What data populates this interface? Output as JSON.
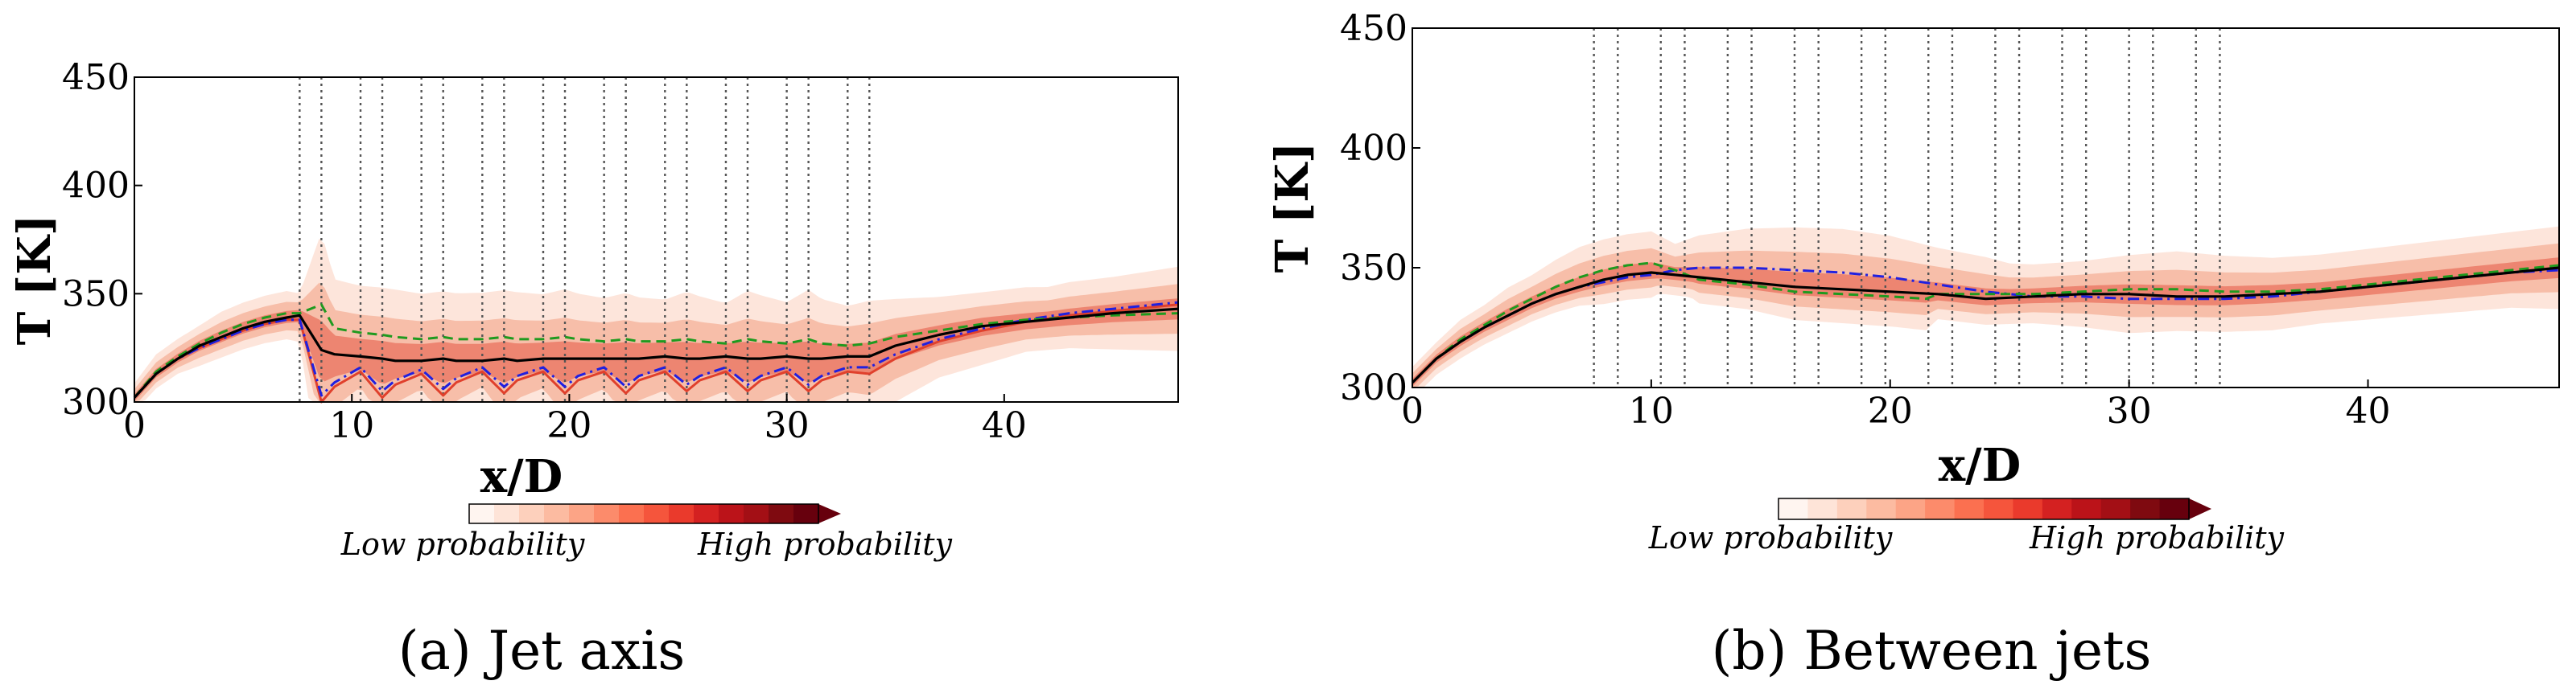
{
  "colors": {
    "band_light": "#fde1d5",
    "band_mid": "#f4a487",
    "band_dark": "#e0402c",
    "line_mean": "#000000",
    "line_green": "#1f9a1f",
    "line_blue": "#2020e0",
    "frame": "#000000",
    "injector": "#555555"
  },
  "colorbar": {
    "low_label": "Low probability",
    "high_label": "High probability",
    "colors": [
      "#fff5f0",
      "#fee4d8",
      "#fdd0bc",
      "#fcbba1",
      "#fca486",
      "#fc8b6b",
      "#fb7050",
      "#f5553c",
      "#ea3a2c",
      "#d42121",
      "#bb1319",
      "#a30f15",
      "#7f0a10",
      "#67000d"
    ]
  },
  "chart_data": [
    {
      "id": "a",
      "type": "line",
      "caption_letter": "(a)",
      "caption_text": "Jet axis",
      "xlabel": "x/D",
      "ylabel": "T [K]",
      "xlim": [
        0,
        48
      ],
      "ylim": [
        300,
        450
      ],
      "xticks": [
        0,
        10,
        20,
        30,
        40
      ],
      "yticks": [
        300,
        350,
        400,
        450
      ],
      "injector_lines": [
        7.6,
        8.6,
        10.4,
        11.4,
        13.2,
        14.2,
        16.0,
        17.0,
        18.8,
        19.8,
        21.6,
        22.6,
        24.4,
        25.4,
        27.2,
        28.2,
        30.0,
        31.0,
        32.8,
        33.8
      ],
      "series": [
        {
          "name": "mean",
          "style": "solid",
          "x": [
            0,
            1,
            2,
            3,
            4,
            5,
            6,
            7,
            7.6,
            8.6,
            9.2,
            10.4,
            11.4,
            12.0,
            13.2,
            14.2,
            14.8,
            16.0,
            17.0,
            17.6,
            18.8,
            19.8,
            20.4,
            21.6,
            22.6,
            23.2,
            24.4,
            25.4,
            26.0,
            27.2,
            28.2,
            28.8,
            30.0,
            31.0,
            31.6,
            32.8,
            33.8,
            35,
            37,
            39,
            41,
            43,
            45,
            48
          ],
          "y": [
            302,
            313,
            320,
            326,
            330,
            334,
            337,
            339,
            340,
            324,
            322,
            321,
            320,
            319,
            319,
            320,
            319,
            319,
            320,
            319,
            320,
            320,
            320,
            320,
            320,
            320,
            321,
            320,
            320,
            321,
            320,
            320,
            321,
            320,
            320,
            321,
            321,
            326,
            331,
            335,
            337,
            339,
            341,
            343
          ]
        },
        {
          "name": "green",
          "style": "dashed",
          "x": [
            0,
            1,
            2,
            3,
            4,
            5,
            6,
            7,
            7.6,
            8.6,
            9.2,
            10.4,
            11.4,
            12.0,
            13.2,
            14.2,
            14.8,
            16.0,
            17.0,
            17.6,
            18.8,
            19.8,
            20.4,
            21.6,
            22.6,
            23.2,
            24.4,
            25.4,
            26.0,
            27.2,
            28.2,
            28.8,
            30.0,
            31.0,
            31.6,
            32.8,
            33.8,
            35,
            37,
            39,
            41,
            43,
            45,
            48
          ],
          "y": [
            302,
            314,
            321,
            327,
            332,
            336,
            339,
            341,
            341,
            345,
            334,
            332,
            331,
            330,
            329,
            330,
            329,
            329,
            330,
            329,
            329,
            330,
            329,
            328,
            329,
            328,
            328,
            329,
            328,
            327,
            329,
            328,
            327,
            329,
            327,
            326,
            327,
            330,
            333,
            336,
            338,
            339,
            340,
            341
          ]
        },
        {
          "name": "blue",
          "style": "dashdot",
          "x": [
            0,
            1,
            2,
            3,
            4,
            5,
            6,
            7,
            7.6,
            8.6,
            9.2,
            10.4,
            11.4,
            12.0,
            13.2,
            14.2,
            14.8,
            16.0,
            17.0,
            17.6,
            18.8,
            19.8,
            20.4,
            21.6,
            22.6,
            23.2,
            24.4,
            25.4,
            26.0,
            27.2,
            28.2,
            28.8,
            30.0,
            31.0,
            31.6,
            32.8,
            33.8,
            35,
            37,
            39,
            41,
            43,
            45,
            48
          ],
          "y": [
            302,
            313,
            320,
            325,
            329,
            333,
            336,
            338,
            338,
            303,
            309,
            316,
            305,
            310,
            315,
            306,
            311,
            316,
            307,
            312,
            316,
            307,
            312,
            316,
            307,
            312,
            316,
            308,
            312,
            316,
            308,
            312,
            316,
            308,
            312,
            316,
            316,
            322,
            329,
            334,
            338,
            341,
            343,
            346
          ]
        },
        {
          "name": "red",
          "style": "solid",
          "x": [
            0,
            1,
            2,
            3,
            4,
            5,
            6,
            7,
            7.6,
            8.6,
            9.2,
            10.4,
            11.4,
            12.0,
            13.2,
            14.2,
            14.8,
            16.0,
            17.0,
            17.6,
            18.8,
            19.8,
            20.4,
            21.6,
            22.6,
            23.2,
            24.4,
            25.4,
            26.0,
            27.2,
            28.2,
            28.8,
            30.0,
            31.0,
            31.6,
            32.8,
            33.8,
            35,
            37,
            39,
            41,
            43,
            45,
            48
          ],
          "y": [
            302,
            313,
            320,
            325,
            329,
            333,
            336,
            338,
            338,
            300,
            307,
            314,
            302,
            308,
            313,
            303,
            309,
            314,
            304,
            310,
            314,
            304,
            310,
            314,
            304,
            310,
            314,
            305,
            310,
            314,
            305,
            310,
            314,
            305,
            310,
            314,
            313,
            320,
            328,
            333,
            337,
            340,
            342,
            345
          ]
        }
      ]
    },
    {
      "id": "b",
      "type": "line",
      "caption_letter": "(b)",
      "caption_text": "Between jets",
      "xlabel": "x/D",
      "ylabel": "T [K]",
      "xlim": [
        0,
        48
      ],
      "ylim": [
        300,
        450
      ],
      "xticks": [
        0,
        10,
        20,
        30,
        40
      ],
      "yticks": [
        300,
        350,
        400,
        450
      ],
      "injector_lines": [
        7.6,
        8.6,
        10.4,
        11.4,
        13.2,
        14.2,
        16.0,
        17.0,
        18.8,
        19.8,
        21.6,
        22.6,
        24.4,
        25.4,
        27.2,
        28.2,
        30.0,
        31.0,
        32.8,
        33.8
      ],
      "series": [
        {
          "name": "mean",
          "style": "solid",
          "x": [
            0,
            1,
            2,
            3,
            4,
            5,
            6,
            7,
            8,
            9,
            10,
            11,
            12,
            14,
            16,
            18,
            20,
            22,
            24,
            26,
            28,
            30,
            32,
            34,
            36,
            38,
            40,
            42,
            44,
            46,
            48
          ],
          "y": [
            302,
            312,
            319,
            325,
            330,
            335,
            339,
            342,
            345,
            347,
            348,
            347,
            346,
            344,
            342,
            341,
            340,
            339,
            337,
            338,
            339,
            339,
            338,
            338,
            339,
            340,
            342,
            344,
            346,
            348,
            350
          ]
        },
        {
          "name": "green",
          "style": "dashed",
          "x": [
            0,
            1,
            2,
            3,
            4,
            5,
            6,
            7,
            8,
            9,
            10,
            11,
            12,
            14,
            16,
            18,
            20,
            21.5,
            22,
            24,
            26,
            28,
            30,
            32,
            34,
            36,
            38,
            40,
            42,
            44,
            46,
            48
          ],
          "y": [
            302,
            312,
            320,
            326,
            332,
            337,
            342,
            346,
            349,
            351,
            352,
            349,
            345,
            343,
            340,
            339,
            338,
            337,
            339,
            339,
            339,
            340,
            341,
            341,
            340,
            340,
            341,
            343,
            345,
            347,
            349,
            351
          ]
        },
        {
          "name": "blue",
          "style": "dashdot",
          "x": [
            0,
            1,
            2,
            3,
            4,
            5,
            6,
            7,
            8,
            9,
            10,
            11,
            12,
            14,
            16,
            18,
            20,
            22,
            24,
            26,
            28,
            30,
            32,
            34,
            36,
            38,
            40,
            42,
            44,
            46,
            48
          ],
          "y": [
            302,
            312,
            319,
            325,
            330,
            335,
            339,
            342,
            344,
            346,
            347,
            349,
            350,
            350,
            349,
            348,
            346,
            343,
            340,
            338,
            338,
            337,
            337,
            337,
            338,
            340,
            342,
            344,
            346,
            348,
            349
          ]
        }
      ]
    }
  ]
}
